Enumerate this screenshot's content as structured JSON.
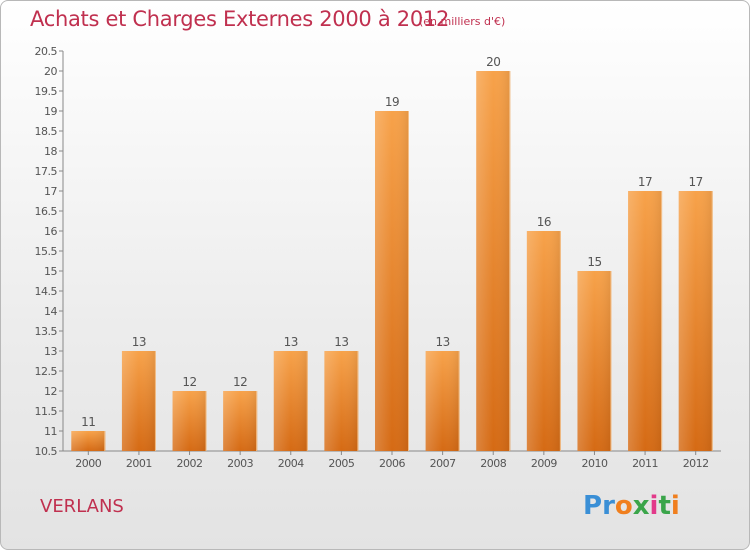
{
  "title": "Achats et Charges Externes 2000 à 2012",
  "unit_note": "(en milliers d'€)",
  "commune": "VERLANS",
  "logo": {
    "text": "Proxiti",
    "letters": [
      "P",
      "r",
      "o",
      "x",
      "i",
      "t",
      "i"
    ],
    "colors": [
      "#3a8fd6",
      "#3a8fd6",
      "#f07f1e",
      "#3aa54a",
      "#e23a8a",
      "#3aa54a",
      "#f07f1e"
    ]
  },
  "colors": {
    "bar": "#f08a2c",
    "title": "#c0304f",
    "axis": "#888888"
  },
  "chart_data": {
    "type": "bar",
    "categories": [
      "2000",
      "2001",
      "2002",
      "2003",
      "2004",
      "2005",
      "2006",
      "2007",
      "2008",
      "2009",
      "2010",
      "2011",
      "2012"
    ],
    "values": [
      11,
      13,
      12,
      12,
      13,
      13,
      19,
      13,
      20,
      16,
      15,
      17,
      17
    ],
    "data_labels": [
      "11",
      "13",
      "12",
      "12",
      "13",
      "13",
      "19",
      "13",
      "20",
      "16",
      "15",
      "17",
      "17"
    ],
    "title": "Achats et Charges Externes 2000 à 2012",
    "xlabel": "",
    "ylabel": "",
    "ylim": [
      10.5,
      20.5
    ],
    "yticks": [
      "10.5",
      "11",
      "11.5",
      "12",
      "12.5",
      "13",
      "13.5",
      "14",
      "14.5",
      "15",
      "15.5",
      "16",
      "16.5",
      "17",
      "17.5",
      "18",
      "18.5",
      "19",
      "19.5",
      "20",
      "20.5"
    ],
    "grid": false,
    "legend": "none"
  }
}
